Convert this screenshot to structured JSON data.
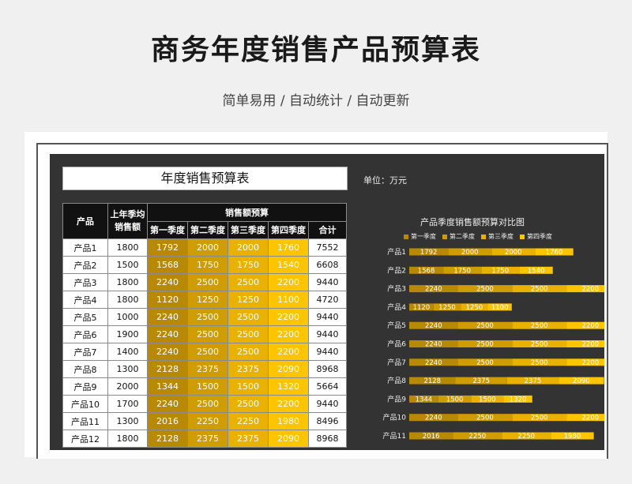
{
  "page": {
    "title": "商务年度销售产品预算表",
    "subtitle": "简单易用  /  自动统计  /  自动更新"
  },
  "sheet": {
    "title": "年度销售预算表",
    "unit_label": "单位：万元",
    "headers": {
      "product": "产品",
      "avg_line1": "上年季均",
      "avg_line2": "销售额",
      "budget_group": "销售额预算",
      "q1": "第一季度",
      "q2": "第二季度",
      "q3": "第三季度",
      "q4": "第四季度",
      "total": "合计"
    },
    "rows": [
      {
        "name": "产品1",
        "avg": "1800",
        "q1": "1792",
        "q2": "2000",
        "q3": "2000",
        "q4": "1760",
        "total": "7552"
      },
      {
        "name": "产品2",
        "avg": "1500",
        "q1": "1568",
        "q2": "1750",
        "q3": "1750",
        "q4": "1540",
        "total": "6608"
      },
      {
        "name": "产品3",
        "avg": "1800",
        "q1": "2240",
        "q2": "2500",
        "q3": "2500",
        "q4": "2200",
        "total": "9440"
      },
      {
        "name": "产品4",
        "avg": "1800",
        "q1": "1120",
        "q2": "1250",
        "q3": "1250",
        "q4": "1100",
        "total": "4720"
      },
      {
        "name": "产品5",
        "avg": "1000",
        "q1": "2240",
        "q2": "2500",
        "q3": "2500",
        "q4": "2200",
        "total": "9440"
      },
      {
        "name": "产品6",
        "avg": "1900",
        "q1": "2240",
        "q2": "2500",
        "q3": "2500",
        "q4": "2200",
        "total": "9440"
      },
      {
        "name": "产品7",
        "avg": "1400",
        "q1": "2240",
        "q2": "2500",
        "q3": "2500",
        "q4": "2200",
        "total": "9440"
      },
      {
        "name": "产品8",
        "avg": "1300",
        "q1": "2128",
        "q2": "2375",
        "q3": "2375",
        "q4": "2090",
        "total": "8968"
      },
      {
        "name": "产品9",
        "avg": "2000",
        "q1": "1344",
        "q2": "1500",
        "q3": "1500",
        "q4": "1320",
        "total": "5664"
      },
      {
        "name": "产品10",
        "avg": "1700",
        "q1": "2240",
        "q2": "2500",
        "q3": "2500",
        "q4": "2200",
        "total": "9440"
      },
      {
        "name": "产品11",
        "avg": "1300",
        "q1": "2016",
        "q2": "2250",
        "q3": "2250",
        "q4": "1980",
        "total": "8496"
      },
      {
        "name": "产品12",
        "avg": "1800",
        "q1": "2128",
        "q2": "2375",
        "q3": "2375",
        "q4": "2090",
        "total": "8968"
      }
    ]
  },
  "chart_data": {
    "type": "bar",
    "orientation": "horizontal",
    "stacked": true,
    "title": "产品季度销售额预算对比图",
    "legend_position": "top",
    "categories": [
      "产品1",
      "产品2",
      "产品3",
      "产品4",
      "产品5",
      "产品6",
      "产品7",
      "产品8",
      "产品9",
      "产品10",
      "产品11"
    ],
    "series": [
      {
        "name": "第一季度",
        "color": "#b88905",
        "values": [
          1792,
          1568,
          2240,
          1120,
          2240,
          2240,
          2240,
          2128,
          1344,
          2240,
          2016
        ]
      },
      {
        "name": "第二季度",
        "color": "#cf9c02",
        "values": [
          2000,
          1750,
          2500,
          1250,
          2500,
          2500,
          2500,
          2375,
          1500,
          2500,
          2250
        ]
      },
      {
        "name": "第三季度",
        "color": "#e9b200",
        "values": [
          2000,
          1750,
          2500,
          1250,
          2500,
          2500,
          2500,
          2375,
          1500,
          2500,
          2250
        ]
      },
      {
        "name": "第四季度",
        "color": "#fcc500",
        "values": [
          1760,
          1540,
          2200,
          1100,
          2200,
          2200,
          2200,
          2090,
          1320,
          2200,
          1980
        ]
      }
    ]
  }
}
